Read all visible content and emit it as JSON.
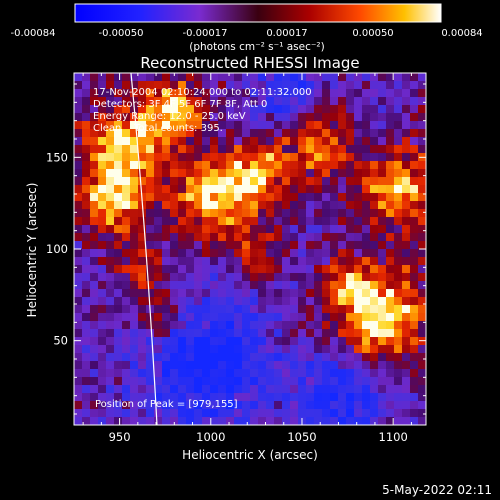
{
  "colorbar": {
    "ticks": [
      "-0.00084",
      "-0.00050",
      "-0.00017",
      "0.00017",
      "0.00050",
      "0.00084"
    ],
    "units": "(photons cm⁻² s⁻¹ asec⁻²)"
  },
  "chart_data": {
    "type": "heatmap",
    "title": "Reconstructed RHESSI Image",
    "xlabel": "Heliocentric X (arcsec)",
    "ylabel": "Heliocentric Y (arcsec)",
    "xlim": [
      925,
      1118
    ],
    "ylim": [
      4,
      196
    ],
    "x_ticks": [
      950,
      1000,
      1050,
      1100
    ],
    "y_ticks": [
      50,
      100,
      150
    ],
    "colorscale_range": [
      -0.00084,
      0.00084
    ],
    "info_lines": [
      "17-Nov-2004 02:10:24.000 to 02:11:32.000",
      "Detectors: 3F 4F 5F 6F 7F 8F, Att 0",
      "Energy Range: 12.0 - 25.0 keV",
      "Clean    Total counts: 395."
    ],
    "peak_label": "Position of Peak = [979,155]",
    "grid": false,
    "legend": "none"
  },
  "footer": {
    "timestamp": "5-May-2022 02:11"
  }
}
